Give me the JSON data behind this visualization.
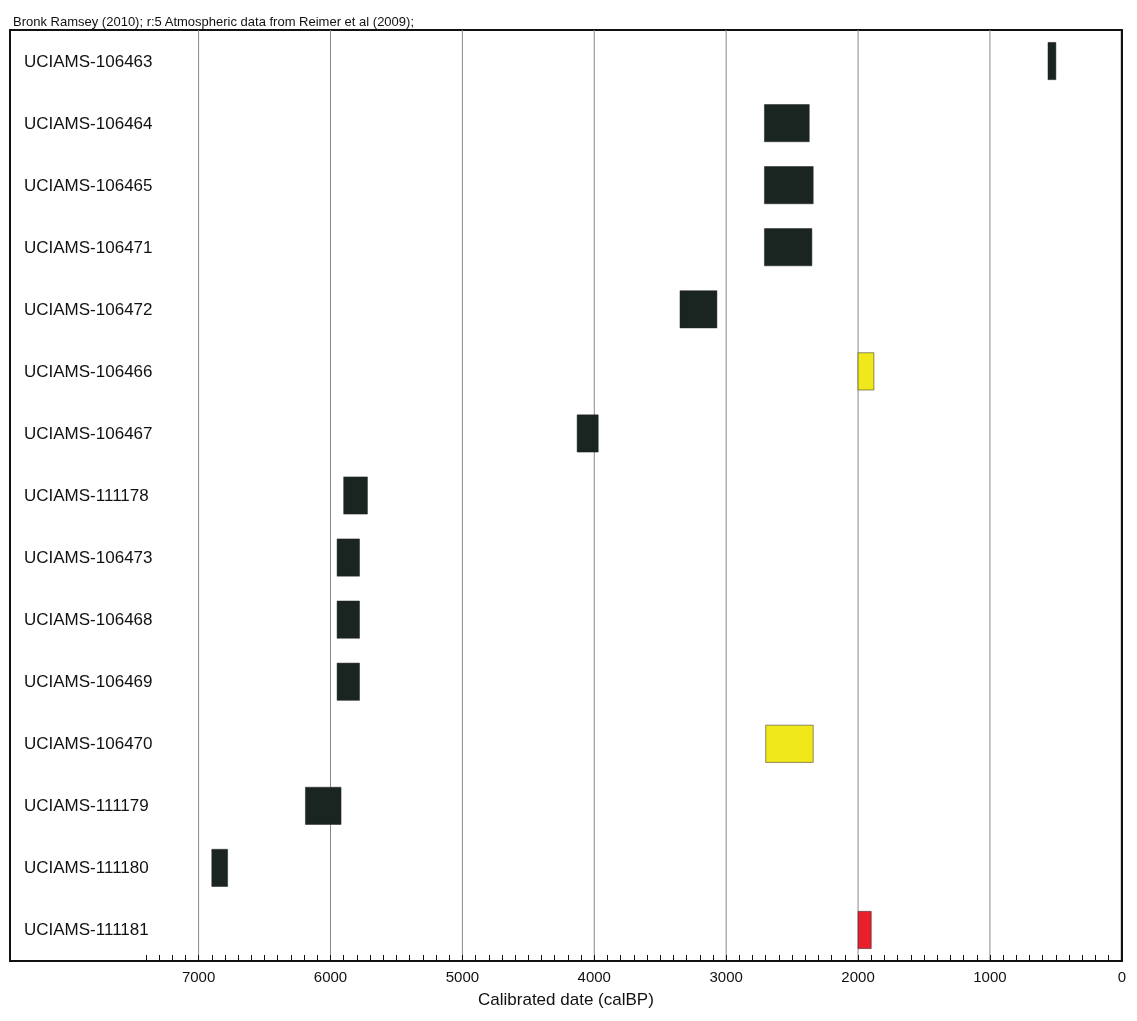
{
  "chart_data": {
    "type": "bar",
    "orientation": "horizontal",
    "title": "Bronk Ramsey (2010); r:5 Atmospheric data from Reimer et al (2009);",
    "xlabel": "Calibrated date (calBP)",
    "categories": [
      "UCIAMS-106463",
      "UCIAMS-106464",
      "UCIAMS-106465",
      "UCIAMS-106471",
      "UCIAMS-106472",
      "UCIAMS-106466",
      "UCIAMS-106467",
      "UCIAMS-111178",
      "UCIAMS-106473",
      "UCIAMS-106468",
      "UCIAMS-106469",
      "UCIAMS-106470",
      "UCIAMS-111179",
      "UCIAMS-111180",
      "UCIAMS-111181"
    ],
    "base": [
      500,
      2370,
      2340,
      2350,
      3070,
      1880,
      3970,
      5720,
      5780,
      5780,
      5780,
      2340,
      5920,
      6780,
      1900
    ],
    "values": [
      60,
      340,
      370,
      360,
      280,
      120,
      160,
      180,
      170,
      170,
      170,
      360,
      270,
      120,
      100
    ],
    "colors": [
      "#1a2420",
      "#1a2420",
      "#1a2420",
      "#1a2420",
      "#1a2420",
      "#f0e81a",
      "#1a2420",
      "#1a2420",
      "#1a2420",
      "#1a2420",
      "#1a2420",
      "#f0e81a",
      "#1a2420",
      "#1a2420",
      "#e8202a"
    ],
    "xlim": [
      8430,
      0
    ],
    "xticks": [
      7000,
      6000,
      5000,
      4000,
      3000,
      2000,
      1000,
      0,
      {
        "value": 7400,
        "label": null
      },
      {
        "value": 7300,
        "label": null
      },
      {
        "value": 7200,
        "label": null
      },
      {
        "value": 7100,
        "label": null
      },
      {
        "value": 6900,
        "label": null
      },
      {
        "value": 6800,
        "label": null
      },
      {
        "value": 6700,
        "label": null
      },
      {
        "value": 6600,
        "label": null
      },
      {
        "value": 6500,
        "label": null
      },
      {
        "value": 6400,
        "label": null
      },
      {
        "value": 6300,
        "label": null
      },
      {
        "value": 6200,
        "label": null
      },
      {
        "value": 6100,
        "label": null
      },
      {
        "value": 5900,
        "label": null
      },
      {
        "value": 5800,
        "label": null
      },
      {
        "value": 5700,
        "label": null
      },
      {
        "value": 5600,
        "label": null
      },
      {
        "value": 5500,
        "label": null
      },
      {
        "value": 5400,
        "label": null
      },
      {
        "value": 5300,
        "label": null
      },
      {
        "value": 5200,
        "label": null
      },
      {
        "value": 5100,
        "label": null
      },
      {
        "value": 4900,
        "label": null
      },
      {
        "value": 4800,
        "label": null
      },
      {
        "value": 4700,
        "label": null
      },
      {
        "value": 4600,
        "label": null
      },
      {
        "value": 4500,
        "label": null
      },
      {
        "value": 4400,
        "label": null
      },
      {
        "value": 4300,
        "label": null
      },
      {
        "value": 4200,
        "label": null
      },
      {
        "value": 4100,
        "label": null
      },
      {
        "value": 3900,
        "label": null
      },
      {
        "value": 3800,
        "label": null
      },
      {
        "value": 3700,
        "label": null
      },
      {
        "value": 3600,
        "label": null
      },
      {
        "value": 3500,
        "label": null
      },
      {
        "value": 3400,
        "label": null
      },
      {
        "value": 3300,
        "label": null
      },
      {
        "value": 3200,
        "label": null
      },
      {
        "value": 3100,
        "label": null
      },
      {
        "value": 2900,
        "label": null
      },
      {
        "value": 2800,
        "label": null
      },
      {
        "value": 2700,
        "label": null
      },
      {
        "value": 2600,
        "label": null
      },
      {
        "value": 2500,
        "label": null
      },
      {
        "value": 2400,
        "label": null
      },
      {
        "value": 2300,
        "label": null
      },
      {
        "value": 2200,
        "label": null
      },
      {
        "value": 2100,
        "label": null
      },
      {
        "value": 1900,
        "label": null
      },
      {
        "value": 1800,
        "label": null
      },
      {
        "value": 1700,
        "label": null
      },
      {
        "value": 1600,
        "label": null
      },
      {
        "value": 1500,
        "label": null
      },
      {
        "value": 1400,
        "label": null
      },
      {
        "value": 1300,
        "label": null
      },
      {
        "value": 1200,
        "label": null
      },
      {
        "value": 1100,
        "label": null
      },
      {
        "value": 900,
        "label": null
      },
      {
        "value": 800,
        "label": null
      },
      {
        "value": 700,
        "label": null
      },
      {
        "value": 600,
        "label": null
      },
      {
        "value": 500,
        "label": null
      },
      {
        "value": 400,
        "label": null
      },
      {
        "value": 300,
        "label": null
      },
      {
        "value": 200,
        "label": null
      },
      {
        "value": 100,
        "label": null
      }
    ],
    "grid": "x"
  }
}
